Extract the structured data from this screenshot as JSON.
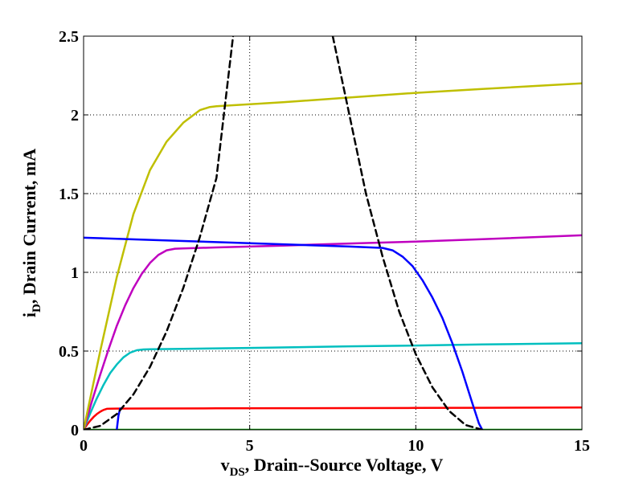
{
  "chart_data": {
    "type": "line",
    "title": "",
    "xlabel": {
      "main": "v",
      "sub": "DS",
      "rest": ", Drain--Source Voltage, V"
    },
    "ylabel": {
      "main": "i",
      "sub": "D",
      "rest": ", Drain Current, mA"
    },
    "xlim": [
      0,
      15
    ],
    "ylim": [
      0,
      2.5
    ],
    "xticks": [
      0,
      5,
      10,
      15
    ],
    "yticks": [
      0,
      0.5,
      1,
      1.5,
      2,
      2.5
    ],
    "xtick_labels": [
      "0",
      "5",
      "10",
      "15"
    ],
    "ytick_labels": [
      "0",
      "0.5",
      "1",
      "1.5",
      "2",
      "2.5"
    ],
    "grid": true,
    "legend": "none",
    "series": [
      {
        "color": "#00a000",
        "dash": "solid",
        "x": [
          0,
          15
        ],
        "y": [
          0,
          0
        ]
      },
      {
        "color": "#ff0000",
        "dash": "solid",
        "x": [
          0,
          0.1,
          0.2,
          0.3,
          0.4,
          0.5,
          0.6,
          0.7,
          0.8,
          1,
          2,
          4,
          6,
          8,
          10,
          12,
          15
        ],
        "y": [
          0,
          0.031,
          0.058,
          0.081,
          0.1,
          0.115,
          0.126,
          0.133,
          0.134,
          0.1345,
          0.135,
          0.136,
          0.137,
          0.138,
          0.139,
          0.14,
          0.142
        ]
      },
      {
        "color": "#00bfbf",
        "dash": "solid",
        "x": [
          0,
          0.2,
          0.4,
          0.6,
          0.8,
          1.0,
          1.2,
          1.4,
          1.6,
          1.8,
          2,
          3,
          5,
          8,
          10,
          12,
          15
        ],
        "y": [
          0,
          0.105,
          0.2,
          0.285,
          0.36,
          0.415,
          0.46,
          0.49,
          0.505,
          0.51,
          0.511,
          0.514,
          0.52,
          0.53,
          0.535,
          0.542,
          0.55
        ]
      },
      {
        "color": "#bf00bf",
        "dash": "solid",
        "x": [
          0,
          0.25,
          0.5,
          0.75,
          1.0,
          1.25,
          1.5,
          1.75,
          2.0,
          2.25,
          2.5,
          2.75,
          3,
          4,
          6,
          8,
          10,
          12,
          15
        ],
        "y": [
          0,
          0.18,
          0.35,
          0.51,
          0.66,
          0.79,
          0.9,
          0.99,
          1.06,
          1.11,
          1.14,
          1.15,
          1.152,
          1.158,
          1.17,
          1.183,
          1.195,
          1.21,
          1.235
        ]
      },
      {
        "color": "#bfbf00",
        "dash": "solid",
        "x": [
          0,
          0.5,
          1.0,
          1.5,
          2.0,
          2.5,
          3.0,
          3.5,
          3.8,
          4,
          6,
          8,
          10,
          12,
          15
        ],
        "y": [
          0,
          0.5,
          0.97,
          1.37,
          1.65,
          1.83,
          1.95,
          2.03,
          2.05,
          2.055,
          2.08,
          2.11,
          2.14,
          2.165,
          2.2
        ]
      },
      {
        "color": "#0000ff",
        "dash": "solid",
        "x": [
          0,
          2,
          4,
          6,
          8,
          9,
          9.3,
          9.6,
          9.9,
          10.2,
          10.5,
          10.8,
          11.1,
          11.4,
          11.7,
          11.9,
          12
        ],
        "y": [
          1.22,
          1.206,
          1.192,
          1.178,
          1.164,
          1.155,
          1.14,
          1.1,
          1.04,
          0.95,
          0.84,
          0.71,
          0.55,
          0.37,
          0.17,
          0.04,
          0
        ]
      },
      {
        "color": "#0000ff",
        "dash": "solid",
        "x": [
          1.0,
          1.02,
          1.05,
          1.1
        ],
        "y": [
          0,
          0.04,
          0.09,
          0.135
        ]
      },
      {
        "color": "#000000",
        "dash": "dashed",
        "x": [
          0,
          0.5,
          1,
          1.5,
          2,
          2.5,
          3,
          3.5,
          4,
          4.5
        ],
        "y": [
          0,
          0.025,
          0.1,
          0.225,
          0.4,
          0.625,
          0.9,
          1.225,
          1.6,
          2.5
        ]
      },
      {
        "color": "#000000",
        "dash": "dashed",
        "x": [
          7.5,
          8,
          8.5,
          9,
          9.5,
          10,
          10.5,
          11,
          11.5,
          12
        ],
        "y": [
          2.5,
          2.0,
          1.5,
          1.1,
          0.75,
          0.48,
          0.27,
          0.12,
          0.03,
          0
        ]
      }
    ]
  }
}
